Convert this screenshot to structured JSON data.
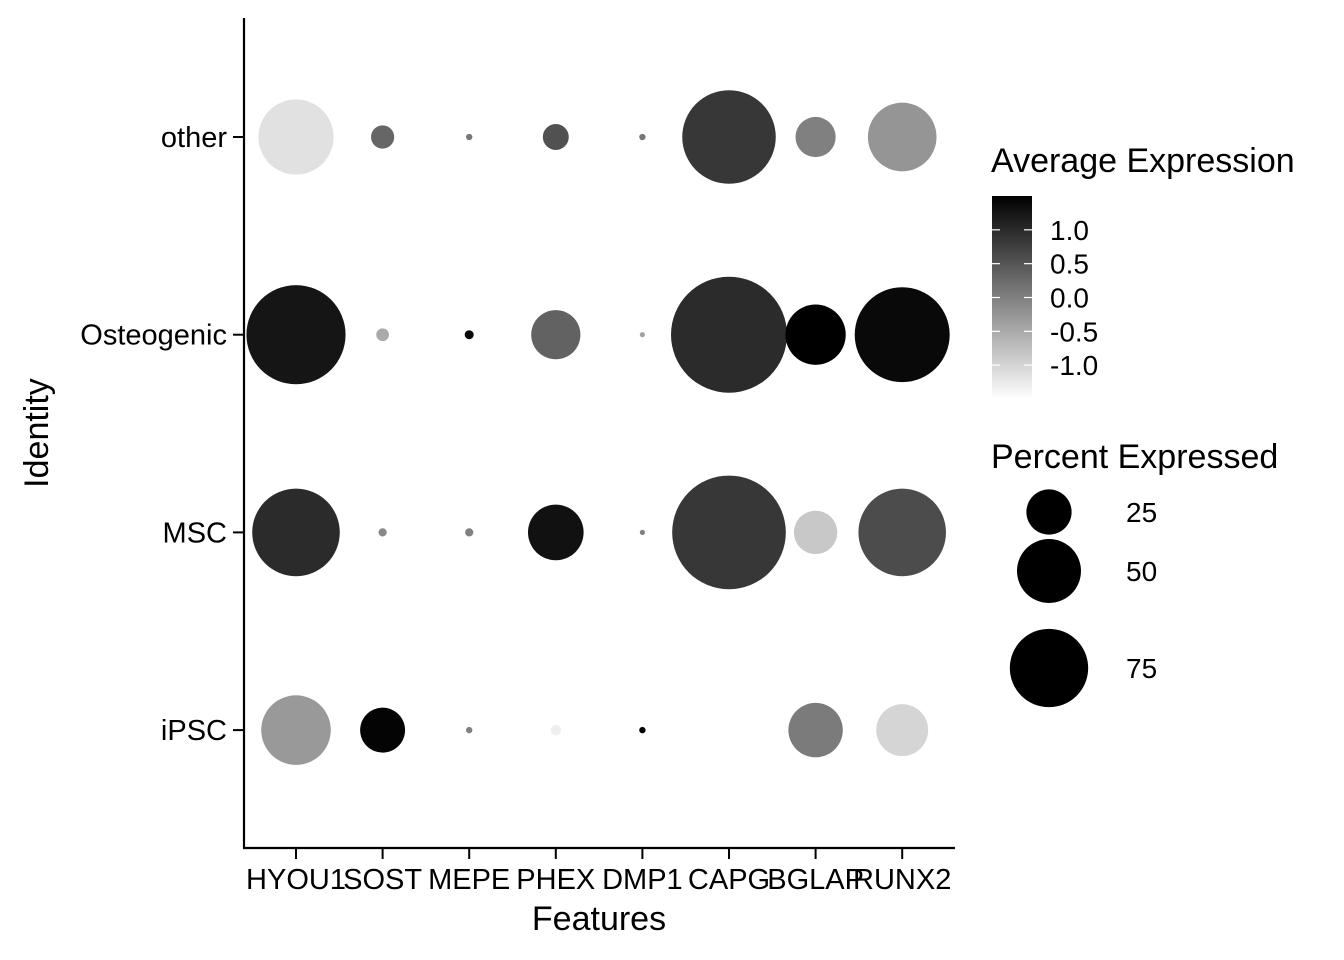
{
  "chart_data": {
    "type": "dot",
    "xlabel": "Features",
    "ylabel": "Identity",
    "features": [
      "HYOU1",
      "SOST",
      "MEPE",
      "PHEX",
      "DMP1",
      "CAPG",
      "BGLAP",
      "RUNX2"
    ],
    "identities": [
      "other",
      "Osteogenic",
      "MSC",
      "iPSC"
    ],
    "avg_exp_scale": {
      "min": -1.5,
      "max": 1.5,
      "ticks": [
        "1.0",
        "0.5",
        "0.0",
        "-0.5",
        "-1.0"
      ],
      "tick_values": [
        1.0,
        0.5,
        0.0,
        -0.5,
        -1.0
      ],
      "low_color": "#ffffff",
      "high_color": "#000000"
    },
    "pct_scale": {
      "max": 100,
      "ticks": [
        "25",
        "50",
        "75"
      ],
      "tick_values": [
        25,
        50,
        75
      ]
    },
    "legend_titles": {
      "color": "Average Expression",
      "size": "Percent Expressed"
    },
    "legend_placement": "right",
    "grid": false,
    "points": [
      {
        "identity": "other",
        "feature": "HYOU1",
        "avg_exp": -1.15,
        "pct_exp": 42
      },
      {
        "identity": "other",
        "feature": "SOST",
        "avg_exp": 0.3,
        "pct_exp": 4
      },
      {
        "identity": "other",
        "feature": "MEPE",
        "avg_exp": 0.1,
        "pct_exp": 0.3
      },
      {
        "identity": "other",
        "feature": "PHEX",
        "avg_exp": 0.55,
        "pct_exp": 5
      },
      {
        "identity": "other",
        "feature": "DMP1",
        "avg_exp": 0.1,
        "pct_exp": 0.3
      },
      {
        "identity": "other",
        "feature": "CAPG",
        "avg_exp": 0.85,
        "pct_exp": 65
      },
      {
        "identity": "other",
        "feature": "BGLAP",
        "avg_exp": 0.0,
        "pct_exp": 12
      },
      {
        "identity": "other",
        "feature": "RUNX2",
        "avg_exp": -0.25,
        "pct_exp": 35
      },
      {
        "identity": "Osteogenic",
        "feature": "HYOU1",
        "avg_exp": 1.25,
        "pct_exp": 73
      },
      {
        "identity": "Osteogenic",
        "feature": "SOST",
        "avg_exp": -0.5,
        "pct_exp": 1.2
      },
      {
        "identity": "Osteogenic",
        "feature": "MEPE",
        "avg_exp": 1.4,
        "pct_exp": 0.6
      },
      {
        "identity": "Osteogenic",
        "feature": "PHEX",
        "avg_exp": 0.35,
        "pct_exp": 18
      },
      {
        "identity": "Osteogenic",
        "feature": "DMP1",
        "avg_exp": -0.4,
        "pct_exp": 0.2
      },
      {
        "identity": "Osteogenic",
        "feature": "CAPG",
        "avg_exp": 1.0,
        "pct_exp": 100
      },
      {
        "identity": "Osteogenic",
        "feature": "BGLAP",
        "avg_exp": 1.5,
        "pct_exp": 27
      },
      {
        "identity": "Osteogenic",
        "feature": "RUNX2",
        "avg_exp": 1.4,
        "pct_exp": 67
      },
      {
        "identity": "MSC",
        "feature": "HYOU1",
        "avg_exp": 1.0,
        "pct_exp": 57
      },
      {
        "identity": "MSC",
        "feature": "SOST",
        "avg_exp": -0.1,
        "pct_exp": 0.5
      },
      {
        "identity": "MSC",
        "feature": "MEPE",
        "avg_exp": 0.0,
        "pct_exp": 0.5
      },
      {
        "identity": "MSC",
        "feature": "PHEX",
        "avg_exp": 1.3,
        "pct_exp": 23
      },
      {
        "identity": "MSC",
        "feature": "DMP1",
        "avg_exp": 0.0,
        "pct_exp": 0.2
      },
      {
        "identity": "MSC",
        "feature": "CAPG",
        "avg_exp": 0.85,
        "pct_exp": 96
      },
      {
        "identity": "MSC",
        "feature": "BGLAP",
        "avg_exp": -0.85,
        "pct_exp": 14
      },
      {
        "identity": "MSC",
        "feature": "RUNX2",
        "avg_exp": 0.6,
        "pct_exp": 57
      },
      {
        "identity": "iPSC",
        "feature": "HYOU1",
        "avg_exp": -0.3,
        "pct_exp": 36
      },
      {
        "identity": "iPSC",
        "feature": "SOST",
        "avg_exp": 1.45,
        "pct_exp": 15
      },
      {
        "identity": "iPSC",
        "feature": "MEPE",
        "avg_exp": 0.0,
        "pct_exp": 0.3
      },
      {
        "identity": "iPSC",
        "feature": "PHEX",
        "avg_exp": -1.3,
        "pct_exp": 0.8
      },
      {
        "identity": "iPSC",
        "feature": "DMP1",
        "avg_exp": 1.5,
        "pct_exp": 0.3
      },
      {
        "identity": "iPSC",
        "feature": "CAPG",
        "avg_exp": -1.5,
        "pct_exp": 55
      },
      {
        "identity": "iPSC",
        "feature": "BGLAP",
        "avg_exp": 0.05,
        "pct_exp": 22
      },
      {
        "identity": "iPSC",
        "feature": "RUNX2",
        "avg_exp": -1.0,
        "pct_exp": 20
      }
    ]
  }
}
